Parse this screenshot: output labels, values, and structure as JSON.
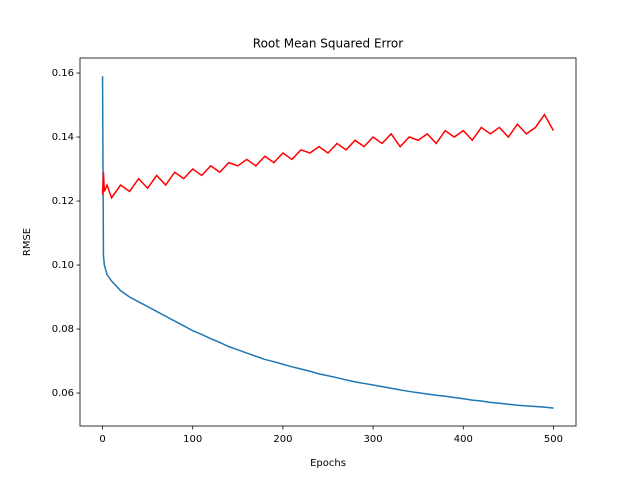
{
  "chart_data": {
    "type": "line",
    "title": "Root Mean Squared Error",
    "xlabel": "Epochs",
    "ylabel": "RMSE",
    "x": [
      0,
      1,
      2,
      5,
      10,
      20,
      30,
      40,
      50,
      60,
      70,
      80,
      90,
      100,
      110,
      120,
      130,
      140,
      150,
      160,
      170,
      180,
      190,
      200,
      210,
      220,
      230,
      240,
      250,
      260,
      270,
      280,
      290,
      300,
      310,
      320,
      330,
      340,
      350,
      360,
      370,
      380,
      390,
      400,
      410,
      420,
      430,
      440,
      450,
      460,
      470,
      480,
      490,
      500
    ],
    "series": [
      {
        "color": "#1f77b4",
        "values": [
          0.159,
          0.103,
          0.1,
          0.097,
          0.095,
          0.092,
          0.09,
          0.0885,
          0.087,
          0.0855,
          0.084,
          0.0825,
          0.081,
          0.0795,
          0.0783,
          0.077,
          0.0758,
          0.0745,
          0.0735,
          0.0725,
          0.0715,
          0.0705,
          0.0698,
          0.069,
          0.0682,
          0.0675,
          0.0668,
          0.066,
          0.0654,
          0.0648,
          0.0641,
          0.0635,
          0.063,
          0.0625,
          0.062,
          0.0615,
          0.061,
          0.0605,
          0.0601,
          0.0597,
          0.0593,
          0.059,
          0.0586,
          0.0582,
          0.0578,
          0.0575,
          0.0571,
          0.0568,
          0.0565,
          0.0562,
          0.056,
          0.0558,
          0.0556,
          0.0553
        ]
      },
      {
        "color": "#ff0000",
        "values": [
          0.122,
          0.129,
          0.123,
          0.125,
          0.121,
          0.125,
          0.123,
          0.127,
          0.124,
          0.128,
          0.125,
          0.129,
          0.127,
          0.13,
          0.128,
          0.131,
          0.129,
          0.132,
          0.131,
          0.133,
          0.131,
          0.134,
          0.132,
          0.135,
          0.133,
          0.136,
          0.135,
          0.137,
          0.135,
          0.138,
          0.136,
          0.139,
          0.137,
          0.14,
          0.138,
          0.141,
          0.137,
          0.14,
          0.139,
          0.141,
          0.138,
          0.142,
          0.14,
          0.142,
          0.139,
          0.143,
          0.141,
          0.143,
          0.14,
          0.144,
          0.141,
          0.143,
          0.147,
          0.142
        ]
      }
    ],
    "xlim": [
      -25,
      525
    ],
    "ylim": [
      0.0497,
      0.1647
    ],
    "xticks": [
      0,
      100,
      200,
      300,
      400,
      500
    ],
    "yticks": [
      0.06,
      0.08,
      {
        "value": 0.1,
        "label": "0.10"
      },
      0.12,
      0.14,
      0.16
    ]
  }
}
